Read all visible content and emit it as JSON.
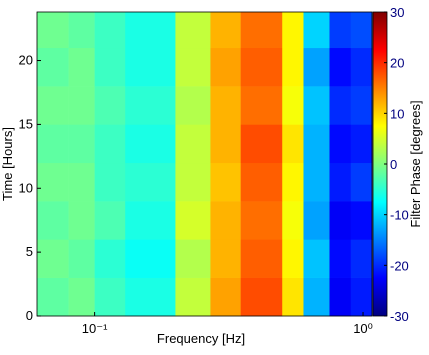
{
  "chart_data": {
    "type": "heatmap",
    "xlabel": "Frequency [Hz]",
    "ylabel": "Time [Hours]",
    "colorbar_label": "Filter Phase [degrees]",
    "xscale": "log",
    "colormap": "jet",
    "xlim": [
      0.061,
      1.08
    ],
    "ylim": [
      0,
      23.8
    ],
    "xticks": [
      {
        "value": 0.1,
        "label": "10⁻¹"
      },
      {
        "value": 1,
        "label": "10⁰"
      }
    ],
    "yticks": [
      0,
      5,
      10,
      15,
      20
    ],
    "clim": [
      -30,
      30
    ],
    "cticks": [
      30,
      20,
      10,
      0,
      -10,
      -20,
      -30
    ],
    "x_edges": [
      0.061,
      0.08,
      0.1,
      0.13,
      0.2,
      0.27,
      0.35,
      0.5,
      0.6,
      0.75,
      0.9,
      1.08
    ],
    "y_edges": [
      0,
      3,
      6,
      9,
      12,
      15,
      18,
      21,
      23.8
    ],
    "values": [
      [
        -2,
        -1,
        -4,
        -6,
        4,
        13,
        18,
        9,
        -12,
        -23,
        -21
      ],
      [
        -1,
        -2,
        -5,
        -7,
        3,
        12,
        17,
        8,
        -11,
        -22,
        -20
      ],
      [
        -2,
        -1,
        -3,
        -6,
        5,
        12,
        16,
        7,
        -13,
        -23,
        -22
      ],
      [
        -1,
        -1,
        -4,
        -5,
        4,
        11,
        17,
        8,
        -12,
        -21,
        -19
      ],
      [
        -2,
        -2,
        -4,
        -6,
        4,
        12,
        18,
        9,
        -12,
        -22,
        -21
      ],
      [
        -1,
        -1,
        -3,
        -5,
        3,
        12,
        16,
        7,
        -11,
        -20,
        -19
      ],
      [
        -2,
        -1,
        -4,
        -6,
        4,
        13,
        17,
        8,
        -13,
        -22,
        -20
      ],
      [
        -1,
        -2,
        -4,
        -6,
        4,
        12,
        16,
        8,
        -10,
        -19,
        -18
      ]
    ]
  }
}
